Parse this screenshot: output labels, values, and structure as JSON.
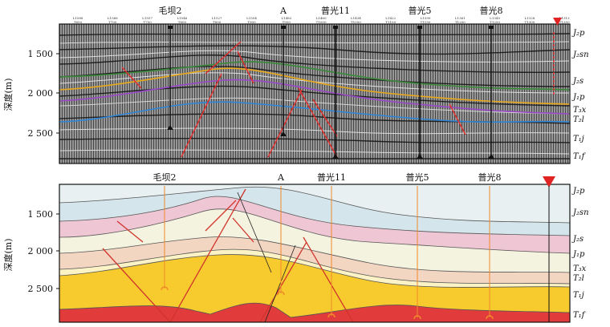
{
  "y_axis_label": "深度(m)",
  "top_panel": {
    "depth_ticks": [
      "1 500",
      "2 000",
      "2 500"
    ],
    "wells": [
      {
        "name": "毛坝2",
        "colour": "#111111"
      },
      {
        "name": "A",
        "colour": "#111111"
      },
      {
        "name": "普光11",
        "colour": "#111111"
      },
      {
        "name": "普光5",
        "colour": "#111111"
      },
      {
        "name": "普光8",
        "colour": "#111111"
      }
    ],
    "trace_labels": [
      {
        "line": "L1588",
        "trace": "T650"
      },
      {
        "line": "L1568",
        "trace": "T700"
      },
      {
        "line": "L1557",
        "trace": "T750"
      },
      {
        "line": "L1546",
        "trace": "T800"
      },
      {
        "line": "L1527",
        "trace": "T850"
      },
      {
        "line": "L1504",
        "trace": "T900"
      },
      {
        "line": "L1483",
        "trace": "T950"
      },
      {
        "line": "L1460",
        "trace": "T1000"
      },
      {
        "line": "L1434",
        "trace": "T1050"
      },
      {
        "line": "L1422",
        "trace": "T1100"
      },
      {
        "line": "L1399",
        "trace": "T1150"
      },
      {
        "line": "L1361",
        "trace": "T1200"
      },
      {
        "line": "L1345",
        "trace": "T1250"
      },
      {
        "line": "L1328",
        "trace": "T1300"
      },
      {
        "line": "L1313",
        "trace": "T1350"
      }
    ],
    "formations": [
      "J₂p",
      "J₂sn",
      "J₂s",
      "J₁p",
      "T₃x",
      "T₂l",
      "T₁j",
      "T₁f"
    ],
    "horizon_colours": [
      "#3a8a3a",
      "#e8a81c",
      "#9a4ac8",
      "#2e86d8"
    ],
    "fault_colour": "#e03030"
  },
  "bottom_panel": {
    "depth_ticks": [
      "1 500",
      "2 000",
      "2 500"
    ],
    "wells": [
      {
        "name": "毛坝2",
        "colour": "#f08a2a"
      },
      {
        "name": "A",
        "colour": "#f08a2a"
      },
      {
        "name": "普光11",
        "colour": "#f08a2a"
      },
      {
        "name": "普光5",
        "colour": "#f08a2a"
      },
      {
        "name": "普光8",
        "colour": "#f08a2a"
      }
    ],
    "formations": [
      "J₂p",
      "J₂sn",
      "J₂s",
      "J₁p",
      "T₃x",
      "T₂l",
      "T₁j",
      "T₁f"
    ],
    "layer_colours": {
      "J₂p": "#e9f0f1",
      "J₂sn": "#d4e5ec",
      "J₂s": "#efc6d4",
      "J₁p": "#f4f3df",
      "T₃x": "#f3d6c2",
      "T₂l": "#fbf2c6",
      "T₁j": "#f7cb2e",
      "T₁f": "#e23b3b"
    },
    "fault_colour": "#d0342c",
    "marker_colour": "#e02424"
  }
}
